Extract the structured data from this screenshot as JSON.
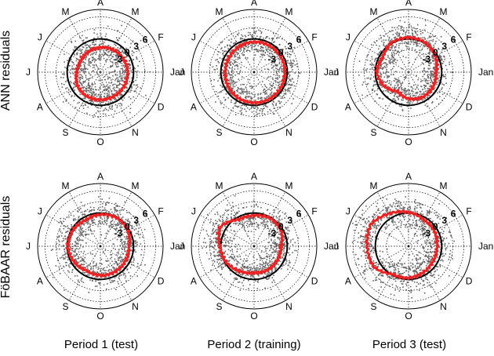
{
  "chart_data": {
    "type": "polar-scatter",
    "row_labels": [
      "ANN residuals",
      "FöBAAR residuals"
    ],
    "column_labels": [
      "Period 1 (test)",
      "Period 2 (training)",
      "Period 3 (test)"
    ],
    "angular_ticks": [
      "Jan",
      "F",
      "M",
      "A",
      "M",
      "J",
      "J",
      "A",
      "S",
      "O",
      "N",
      "D"
    ],
    "radial_ticks": [
      -3,
      0,
      3,
      6
    ],
    "rlim": [
      -9,
      8
    ],
    "grid": true,
    "colors": {
      "points": "#666666",
      "line": "#ee2222",
      "reference": "#000000"
    },
    "panels": [
      {
        "row": 0,
        "col": 0,
        "red_curve_r": [
          -1.6,
          -1.8,
          -2.0,
          -2.3,
          -2.6,
          -2.9,
          -2.6,
          -1.8,
          -1.5,
          -1.5,
          -1.5,
          -1.5
        ],
        "point_spread": 2.2
      },
      {
        "row": 0,
        "col": 1,
        "red_curve_r": [
          -0.6,
          -0.6,
          -0.7,
          -0.8,
          -1.0,
          -1.2,
          -1.2,
          -1.0,
          -0.8,
          -0.7,
          -0.6,
          -0.6
        ],
        "point_spread": 1.9
      },
      {
        "row": 0,
        "col": 2,
        "red_curve_r": [
          -1.5,
          -0.6,
          0.2,
          0.4,
          0.2,
          -1.0,
          -0.4,
          -1.4,
          -3.0,
          -1.8,
          -1.2,
          -1.3
        ],
        "point_spread": 2.0
      },
      {
        "row": 1,
        "col": 0,
        "red_curve_r": [
          -1.2,
          -0.4,
          -0.1,
          -0.4,
          -0.9,
          -0.4,
          -0.2,
          -0.7,
          -1.4,
          -1.1,
          -1.0,
          -1.1
        ],
        "point_spread": 2.0
      },
      {
        "row": 1,
        "col": 1,
        "red_curve_r": [
          -1.7,
          -0.5,
          -0.2,
          -0.7,
          -0.7,
          1.6,
          0.2,
          -0.3,
          -1.2,
          -1.8,
          -1.6,
          -1.6
        ],
        "point_spread": 1.9
      },
      {
        "row": 1,
        "col": 2,
        "red_curve_r": [
          -1.3,
          -0.9,
          -0.7,
          0.2,
          1.2,
          2.8,
          2.2,
          2.0,
          -0.3,
          -0.4,
          -0.9,
          -1.2
        ],
        "point_spread": 2.1
      }
    ]
  }
}
